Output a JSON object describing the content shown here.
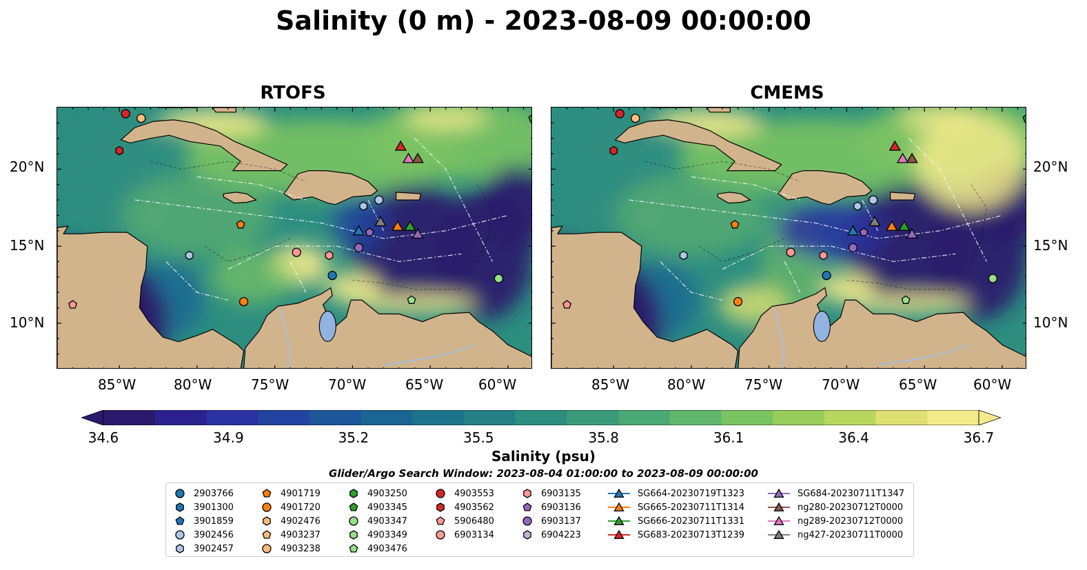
{
  "title": "Salinity (0 m) - 2023-08-09 00:00:00",
  "panels": [
    {
      "title": "RTOFS"
    },
    {
      "title": "CMEMS"
    }
  ],
  "lat_ticks": [
    "20°N",
    "15°N",
    "10°N"
  ],
  "lon_ticks": [
    "85°W",
    "80°W",
    "75°W",
    "70°W",
    "65°W",
    "60°W"
  ],
  "colorbar": {
    "label": "Salinity (psu)",
    "ticks": [
      "34.6",
      "34.9",
      "35.2",
      "35.5",
      "35.8",
      "36.1",
      "36.4",
      "36.7"
    ],
    "colors": [
      "#2a1a6b",
      "#2b2290",
      "#2a31a0",
      "#22439f",
      "#1d559a",
      "#1a6593",
      "#1d738c",
      "#258086",
      "#2d8e80",
      "#3a9b7a",
      "#4aa974",
      "#5fb66c",
      "#7ac363",
      "#98cd5c",
      "#b8d65e",
      "#dfe072",
      "#f3ea8a"
    ]
  },
  "search_window": "Glider/Argo Search Window: 2023-08-04 01:00:00 to 2023-08-09 00:00:00",
  "legend": [
    [
      {
        "label": "2903766",
        "color": "#1f77b4",
        "marker": "circle"
      },
      {
        "label": "3901300",
        "color": "#1f77b4",
        "marker": "hexagon"
      },
      {
        "label": "3901859",
        "color": "#1f77b4",
        "marker": "pentagon"
      },
      {
        "label": "3902456",
        "color": "#aec7e8",
        "marker": "circle"
      },
      {
        "label": "3902457",
        "color": "#aec7e8",
        "marker": "hexagon"
      }
    ],
    [
      {
        "label": "4901719",
        "color": "#ff7f0e",
        "marker": "pentagon"
      },
      {
        "label": "4901720",
        "color": "#ff7f0e",
        "marker": "circle"
      },
      {
        "label": "4902476",
        "color": "#ffbb78",
        "marker": "hexagon"
      },
      {
        "label": "4903237",
        "color": "#ffbb78",
        "marker": "pentagon"
      },
      {
        "label": "4903238",
        "color": "#ffbb78",
        "marker": "circle"
      }
    ],
    [
      {
        "label": "4903250",
        "color": "#2ca02c",
        "marker": "hexagon"
      },
      {
        "label": "4903345",
        "color": "#2ca02c",
        "marker": "pentagon"
      },
      {
        "label": "4903347",
        "color": "#98df8a",
        "marker": "circle"
      },
      {
        "label": "4903349",
        "color": "#98df8a",
        "marker": "hexagon"
      },
      {
        "label": "4903476",
        "color": "#98df8a",
        "marker": "pentagon"
      }
    ],
    [
      {
        "label": "4903553",
        "color": "#d62728",
        "marker": "circle"
      },
      {
        "label": "4903562",
        "color": "#d62728",
        "marker": "hexagon"
      },
      {
        "label": "5906480",
        "color": "#ff9896",
        "marker": "pentagon"
      },
      {
        "label": "6903134",
        "color": "#ff9896",
        "marker": "circle"
      }
    ],
    [
      {
        "label": "6903135",
        "color": "#ff9896",
        "marker": "hexagon"
      },
      {
        "label": "6903136",
        "color": "#9467bd",
        "marker": "pentagon"
      },
      {
        "label": "6903137",
        "color": "#9467bd",
        "marker": "circle"
      },
      {
        "label": "6904223",
        "color": "#c5b0d5",
        "marker": "hexagon"
      }
    ],
    [
      {
        "label": "SG664-20230719T1323",
        "color": "#1f77b4",
        "marker": "triangle"
      },
      {
        "label": "SG665-20230711T1314",
        "color": "#ff7f0e",
        "marker": "triangle"
      },
      {
        "label": "SG666-20230711T1331",
        "color": "#2ca02c",
        "marker": "triangle"
      },
      {
        "label": "SG683-20230713T1239",
        "color": "#d62728",
        "marker": "triangle"
      }
    ],
    [
      {
        "label": "SG684-20230711T1347",
        "color": "#9467bd",
        "marker": "triangle"
      },
      {
        "label": "ng280-20230712T0000",
        "color": "#8c564b",
        "marker": "triangle"
      },
      {
        "label": "ng289-20230712T0000",
        "color": "#e377c2",
        "marker": "triangle"
      },
      {
        "label": "ng427-20230711T0000",
        "color": "#7f7f7f",
        "marker": "triangle"
      }
    ]
  ],
  "map_colors": {
    "land": "#d2b48c",
    "lake": "#92b3e0",
    "river": "#a6bddb",
    "deep": "#2a1a6b",
    "mid": "#2d8e80",
    "high": "#7ac363",
    "salty": "#f3ea8a"
  },
  "observations": [
    {
      "lon": -84.6,
      "lat": 23.6,
      "color": "#d62728",
      "marker": "circle"
    },
    {
      "lon": -83.6,
      "lat": 23.3,
      "color": "#ffbb78",
      "marker": "circle"
    },
    {
      "lon": -85.0,
      "lat": 21.2,
      "color": "#d62728",
      "marker": "hexagon"
    },
    {
      "lon": -77.2,
      "lat": 16.4,
      "color": "#ff7f0e",
      "marker": "pentagon"
    },
    {
      "lon": -80.5,
      "lat": 14.4,
      "color": "#aec7e8",
      "marker": "hexagon"
    },
    {
      "lon": -77.0,
      "lat": 11.4,
      "color": "#ff7f0e",
      "marker": "circle"
    },
    {
      "lon": -88.0,
      "lat": 11.2,
      "color": "#ff9896",
      "marker": "pentagon"
    },
    {
      "lon": -73.6,
      "lat": 14.6,
      "color": "#ff9896",
      "marker": "circle"
    },
    {
      "lon": -71.5,
      "lat": 14.4,
      "color": "#ff9896",
      "marker": "hexagon"
    },
    {
      "lon": -71.3,
      "lat": 13.1,
      "color": "#1f77b4",
      "marker": "circle"
    },
    {
      "lon": -69.6,
      "lat": 14.9,
      "color": "#9467bd",
      "marker": "circle"
    },
    {
      "lon": -68.9,
      "lat": 15.9,
      "color": "#9467bd",
      "marker": "pentagon"
    },
    {
      "lon": -69.3,
      "lat": 17.6,
      "color": "#aec7e8",
      "marker": "hexagon"
    },
    {
      "lon": -68.3,
      "lat": 18.0,
      "color": "#aec7e8",
      "marker": "circle"
    },
    {
      "lon": -66.2,
      "lat": 11.5,
      "color": "#98df8a",
      "marker": "pentagon"
    },
    {
      "lon": -60.6,
      "lat": 12.9,
      "color": "#98df8a",
      "marker": "circle"
    },
    {
      "lon": -58.4,
      "lat": 23.3,
      "color": "#2ca02c",
      "marker": "pentagon"
    }
  ],
  "glider_positions": [
    {
      "lon": -69.6,
      "lat": 16.0,
      "color": "#1f77b4"
    },
    {
      "lon": -68.2,
      "lat": 16.6,
      "color": "#7f7f7f"
    },
    {
      "lon": -67.1,
      "lat": 16.3,
      "color": "#ff7f0e"
    },
    {
      "lon": -66.3,
      "lat": 16.3,
      "color": "#2ca02c"
    },
    {
      "lon": -65.8,
      "lat": 15.8,
      "color": "#9467bd"
    },
    {
      "lon": -66.9,
      "lat": 21.5,
      "color": "#d62728"
    },
    {
      "lon": -66.4,
      "lat": 20.7,
      "color": "#e377c2"
    },
    {
      "lon": -65.8,
      "lat": 20.7,
      "color": "#8c564b"
    }
  ]
}
